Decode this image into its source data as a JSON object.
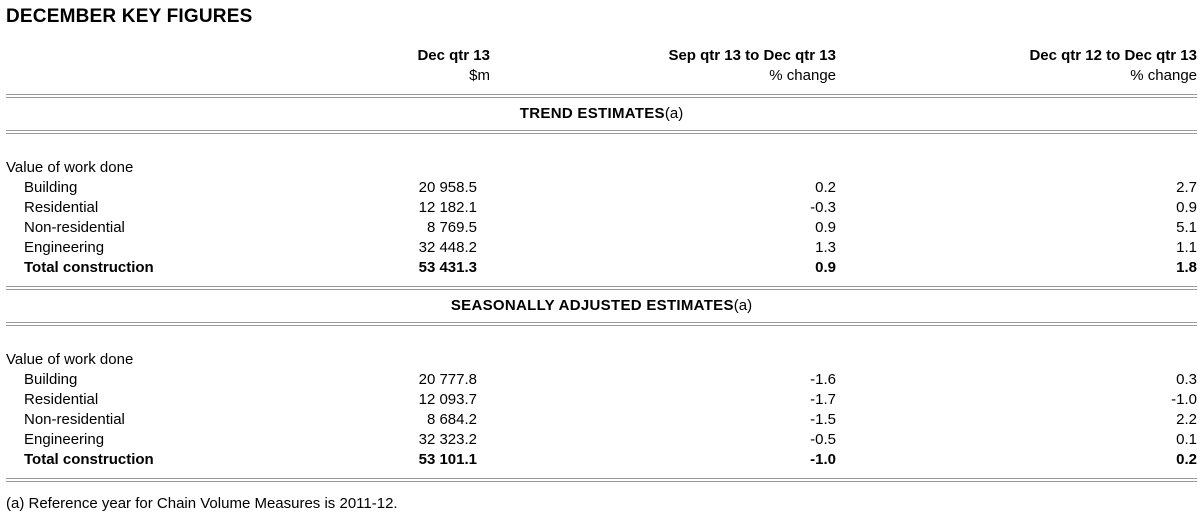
{
  "page": {
    "title": "DECEMBER KEY FIGURES",
    "footnote": "(a) Reference year for Chain Volume Measures is 2011-12."
  },
  "table": {
    "columns": [
      {
        "line1": "Dec qtr 13",
        "line2": "$m"
      },
      {
        "line1": "Sep qtr 13 to Dec qtr 13",
        "line2": "% change"
      },
      {
        "line1": "Dec qtr 12 to Dec qtr 13",
        "line2": "% change"
      }
    ],
    "sections": [
      {
        "heading": "TREND ESTIMATES",
        "heading_note": "(a)",
        "group_label": "Value of work done",
        "rows": [
          {
            "label": "Building",
            "m": "20 958.5",
            "qoq": "0.2",
            "yoy": "2.7"
          },
          {
            "label": "Residential",
            "m": "12 182.1",
            "qoq": "-0.3",
            "yoy": "0.9"
          },
          {
            "label": "Non-residential",
            "m": "8 769.5",
            "qoq": "0.9",
            "yoy": "5.1"
          },
          {
            "label": "Engineering",
            "m": "32 448.2",
            "qoq": "1.3",
            "yoy": "1.1"
          }
        ],
        "total": {
          "label": "Total construction",
          "m": "53 431.3",
          "qoq": "0.9",
          "yoy": "1.8"
        }
      },
      {
        "heading": "SEASONALLY ADJUSTED ESTIMATES",
        "heading_note": "(a)",
        "group_label": "Value of work done",
        "rows": [
          {
            "label": "Building",
            "m": "20 777.8",
            "qoq": "-1.6",
            "yoy": "0.3"
          },
          {
            "label": "Residential",
            "m": "12 093.7",
            "qoq": "-1.7",
            "yoy": "-1.0"
          },
          {
            "label": "Non-residential",
            "m": "8 684.2",
            "qoq": "-1.5",
            "yoy": "2.2"
          },
          {
            "label": "Engineering",
            "m": "32 323.2",
            "qoq": "-0.5",
            "yoy": "0.1"
          }
        ],
        "total": {
          "label": "Total construction",
          "m": "53 101.1",
          "qoq": "-1.0",
          "yoy": "0.2"
        }
      }
    ]
  }
}
